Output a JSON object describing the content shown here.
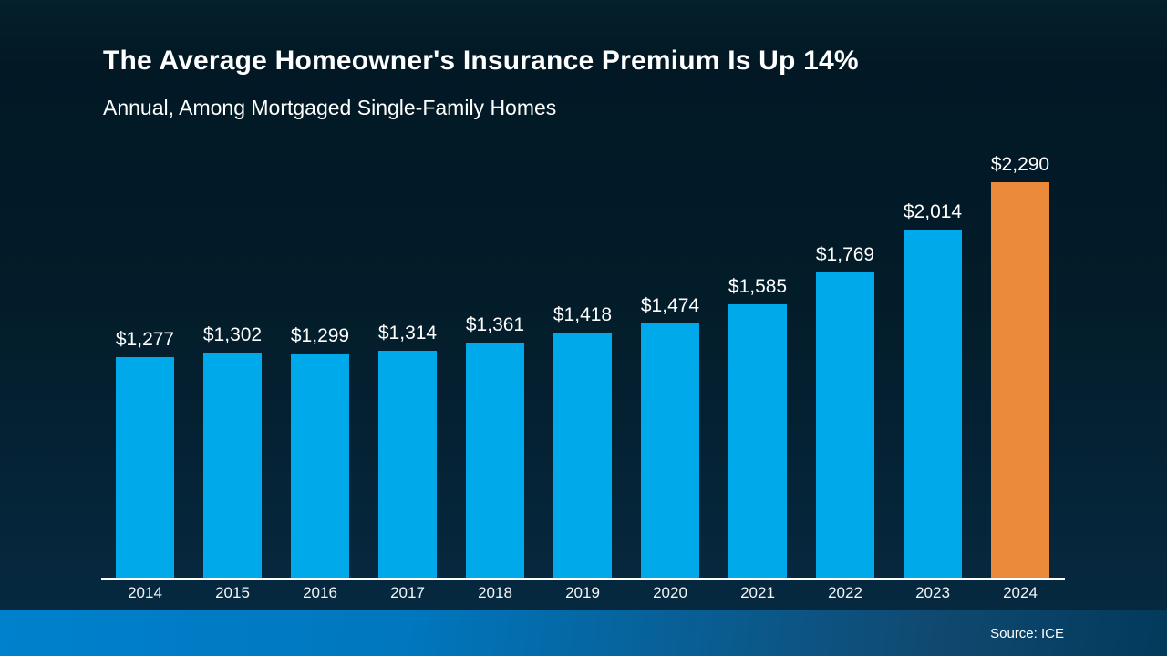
{
  "header": {
    "title": "The Average Homeowner's Insurance Premium Is Up 14%",
    "subtitle": "Annual, Among Mortgaged Single-Family Homes"
  },
  "chart_data": {
    "type": "bar",
    "title": "The Average Homeowner's Insurance Premium Is Up 14%",
    "subtitle": "Annual, Among Mortgaged Single-Family Homes",
    "categories": [
      "2014",
      "2015",
      "2016",
      "2017",
      "2018",
      "2019",
      "2020",
      "2021",
      "2022",
      "2023",
      "2024"
    ],
    "values": [
      1277,
      1302,
      1299,
      1314,
      1361,
      1418,
      1474,
      1585,
      1769,
      2014,
      2290
    ],
    "data_labels": [
      "$1,277",
      "$1,302",
      "$1,299",
      "$1,314",
      "$1,361",
      "$1,418",
      "$1,474",
      "$1,585",
      "$1,769",
      "$2,014",
      "$2,290"
    ],
    "xlabel": "",
    "ylabel": "",
    "ylim": [
      0,
      2290
    ],
    "grid": false,
    "legend": false,
    "bar_color": "#00A9EA",
    "highlight_color": "#EB8A3A",
    "highlight_index": 10,
    "label_color": "#FFFFFF"
  },
  "theme": {
    "background_top": "#021825",
    "background_bottom": "#062940",
    "axis_line_color": "#FFFFFF",
    "footer_gradient_left": "#0077BE",
    "footer_gradient_right": "#023A5C"
  },
  "footer": {
    "source": "Source: ICE"
  }
}
